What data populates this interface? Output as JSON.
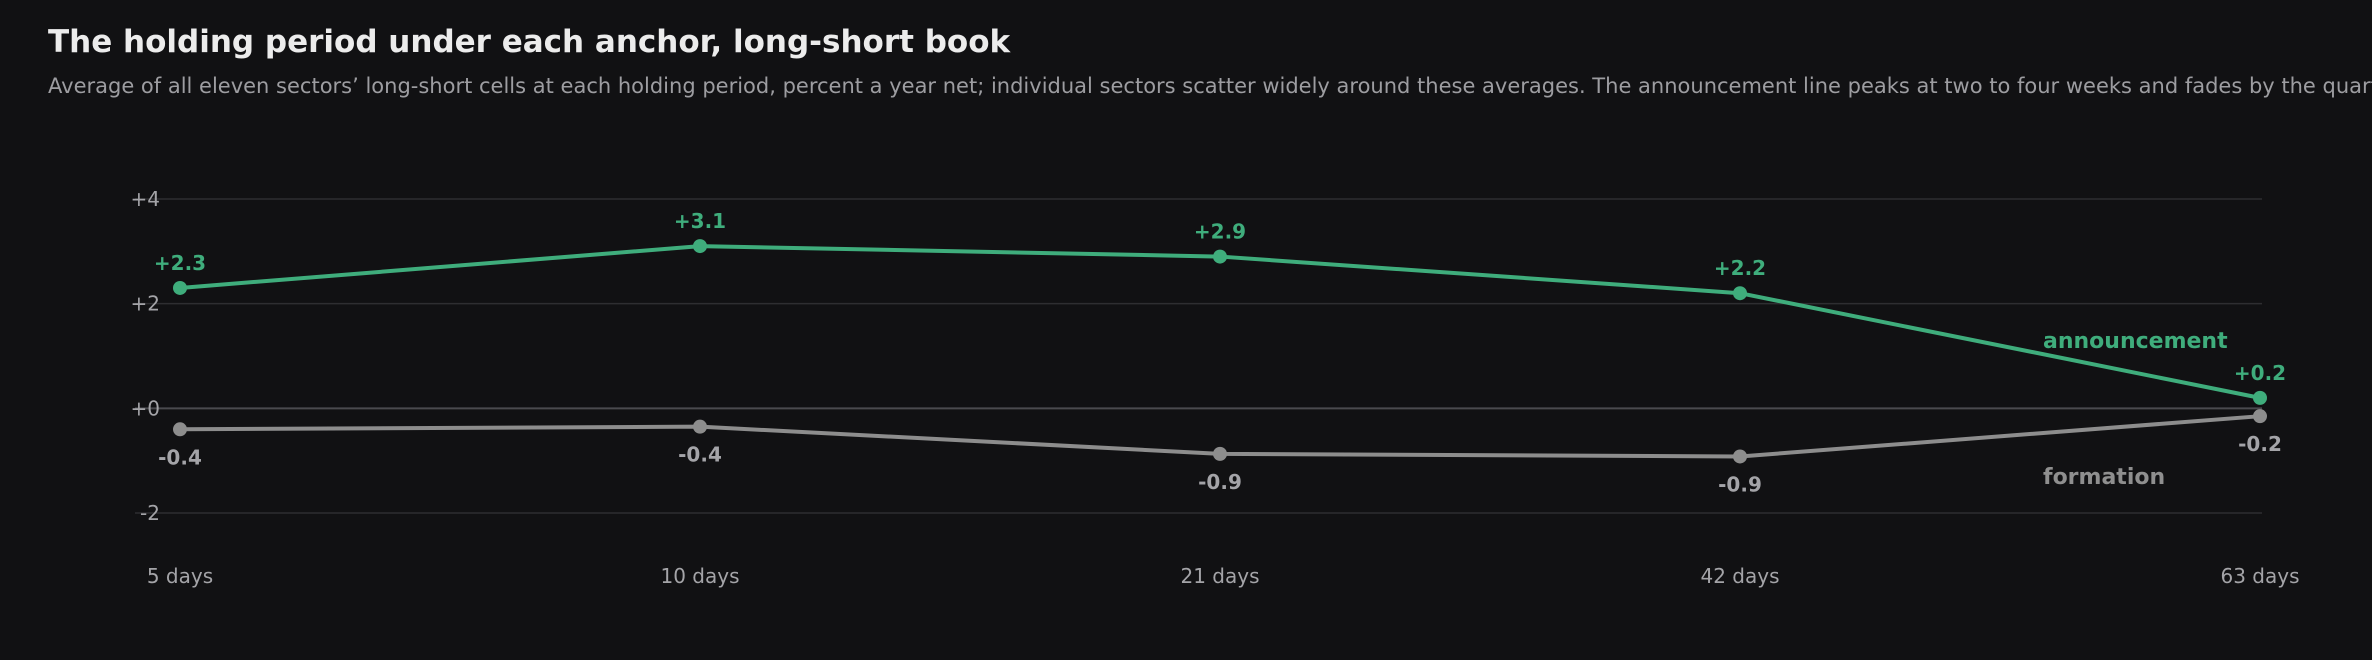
{
  "title": "The holding period under each anchor, long-short book",
  "subtitle": "Average of all eleven sectors’ long-short cells at each holding period, percent a year net; individual sectors scatter widely around these averages. The announcement line peaks at two to four weeks and fades by the quarte",
  "colors": {
    "background": "#111113",
    "gridline": "#2e2e31",
    "zero_line": "#4a4a4e",
    "announcement": "#3fad7c",
    "formation": "#8d8d8d"
  },
  "chart_data": {
    "type": "line",
    "categories": [
      "5 days",
      "10 days",
      "21 days",
      "42 days",
      "63 days"
    ],
    "ylim": [
      -2,
      4
    ],
    "yticks": [
      4,
      2,
      0,
      -2
    ],
    "ytick_labels": [
      "+4",
      "+2",
      "+0",
      "-2"
    ],
    "grid": true,
    "series": [
      {
        "name": "announcement",
        "values": [
          2.3,
          3.1,
          2.9,
          2.2,
          0.2
        ],
        "labels": [
          "+2.3",
          "+3.1",
          "+2.9",
          "+2.2",
          "+0.2"
        ],
        "color": "#3fad7c",
        "label_position": "above"
      },
      {
        "name": "formation",
        "values": [
          -0.4,
          -0.35,
          -0.87,
          -0.92,
          -0.15
        ],
        "labels": [
          "-0.4",
          "-0.4",
          "-0.9",
          "-0.9",
          "-0.2"
        ],
        "color": "#8d8d8d",
        "label_position": "below"
      }
    ]
  }
}
